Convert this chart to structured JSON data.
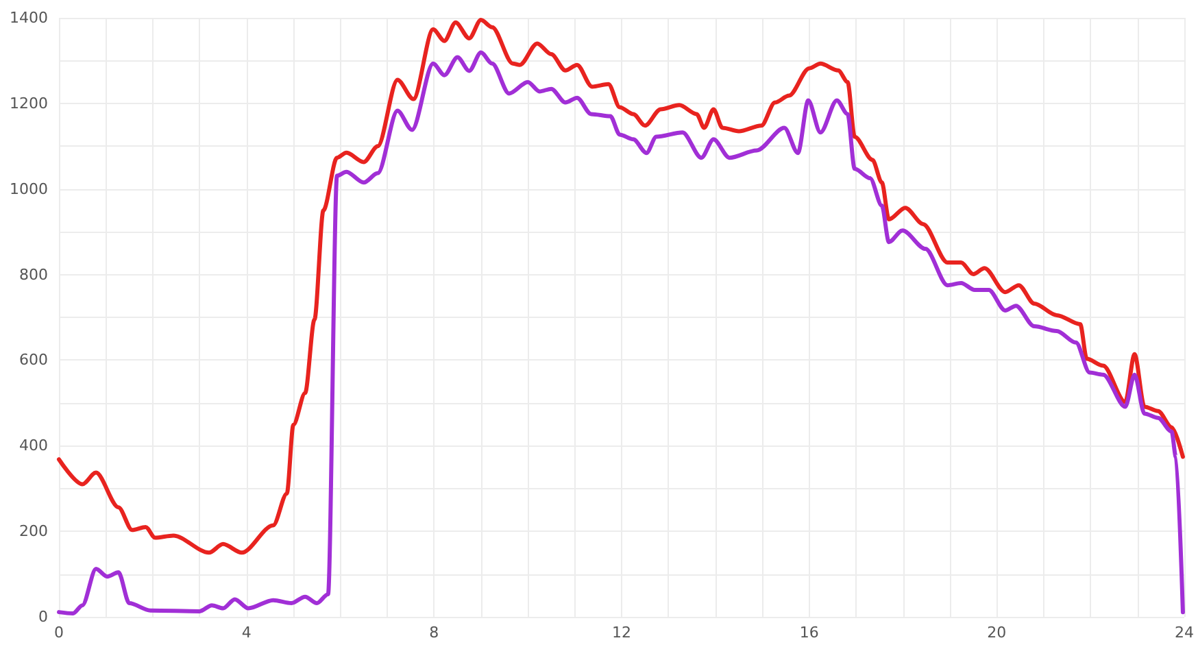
{
  "chart_data": {
    "type": "line",
    "xlim": [
      0,
      24
    ],
    "ylim": [
      0,
      1400
    ],
    "xticks": [
      0,
      {
        "value": 1,
        "label": null
      },
      {
        "value": 2,
        "label": null
      },
      {
        "value": 3,
        "label": null
      },
      4,
      {
        "value": 5,
        "label": null
      },
      {
        "value": 6,
        "label": null
      },
      {
        "value": 7,
        "label": null
      },
      8,
      {
        "value": 9,
        "label": null
      },
      {
        "value": 10,
        "label": null
      },
      {
        "value": 11,
        "label": null
      },
      12,
      {
        "value": 13,
        "label": null
      },
      {
        "value": 14,
        "label": null
      },
      {
        "value": 15,
        "label": null
      },
      16,
      {
        "value": 17,
        "label": null
      },
      {
        "value": 18,
        "label": null
      },
      {
        "value": 19,
        "label": null
      },
      20,
      {
        "value": 21,
        "label": null
      },
      {
        "value": 22,
        "label": null
      },
      {
        "value": 23,
        "label": null
      },
      24
    ],
    "yticks": [
      0,
      {
        "value": 100,
        "label": null
      },
      200,
      {
        "value": 300,
        "label": null
      },
      400,
      {
        "value": 500,
        "label": null
      },
      600,
      {
        "value": 700,
        "label": null
      },
      800,
      {
        "value": 900,
        "label": null
      },
      1000,
      {
        "value": 1100,
        "label": null
      },
      1200,
      {
        "value": 1300,
        "label": null
      },
      1400
    ],
    "grid": true,
    "marker": "none",
    "line_style": "solid",
    "series": [
      {
        "color": "#e8231f",
        "x": [
          0,
          0.5,
          0.79,
          1.27,
          1.56,
          1.85,
          2.05,
          2.44,
          3.2,
          3.5,
          3.9,
          4.57,
          4.86,
          5.0,
          5.25,
          5.45,
          5.64,
          5.93,
          6.13,
          6.5,
          6.8,
          7.22,
          7.56,
          7.98,
          8.22,
          8.46,
          8.75,
          9.0,
          9.24,
          9.68,
          9.83,
          10.2,
          10.5,
          10.8,
          11.05,
          11.37,
          11.72,
          11.96,
          12.25,
          12.5,
          12.83,
          13.23,
          13.6,
          13.76,
          13.96,
          14.15,
          14.5,
          14.98,
          15.27,
          15.57,
          16.0,
          16.24,
          16.62,
          16.82,
          16.97,
          17.35,
          17.55,
          17.7,
          18.05,
          18.43,
          18.95,
          19.24,
          19.5,
          19.74,
          20.18,
          20.47,
          20.8,
          21.28,
          21.78,
          21.92,
          22.27,
          22.74,
          22.94,
          23.15,
          23.44,
          23.73,
          23.97
        ],
        "values": [
          368,
          310,
          337,
          256,
          203,
          210,
          185,
          190,
          150,
          170,
          150,
          214,
          288,
          449,
          523,
          695,
          950,
          1073,
          1085,
          1063,
          1100,
          1255,
          1210,
          1373,
          1346,
          1389,
          1352,
          1395,
          1378,
          1293,
          1290,
          1340,
          1315,
          1277,
          1290,
          1239,
          1245,
          1191,
          1175,
          1148,
          1186,
          1196,
          1175,
          1143,
          1186,
          1143,
          1135,
          1148,
          1202,
          1218,
          1282,
          1293,
          1277,
          1250,
          1122,
          1068,
          1015,
          929,
          956,
          918,
          828,
          828,
          801,
          815,
          759,
          775,
          732,
          705,
          684,
          603,
          587,
          502,
          614,
          491,
          481,
          443,
          374
        ]
      },
      {
        "color": "#a12fd6",
        "x": [
          0,
          0.3,
          0.5,
          0.79,
          1.03,
          1.27,
          1.5,
          1.95,
          3.0,
          3.26,
          3.5,
          3.75,
          4.04,
          4.57,
          4.96,
          5.25,
          5.5,
          5.74,
          5.93,
          6.13,
          6.5,
          6.8,
          7.22,
          7.53,
          7.98,
          8.22,
          8.5,
          8.75,
          9.0,
          9.24,
          9.6,
          10.0,
          10.25,
          10.5,
          10.8,
          11.05,
          11.35,
          11.76,
          11.96,
          12.25,
          12.53,
          12.74,
          13.3,
          13.7,
          13.96,
          14.3,
          14.88,
          15.47,
          15.76,
          15.98,
          16.24,
          16.59,
          16.82,
          16.97,
          17.3,
          17.55,
          17.7,
          17.99,
          18.48,
          18.95,
          19.24,
          19.53,
          19.83,
          20.18,
          20.41,
          20.8,
          21.28,
          21.69,
          21.98,
          22.27,
          22.74,
          22.94,
          23.15,
          23.44,
          23.73,
          23.82,
          23.97
        ],
        "values": [
          11,
          8,
          27,
          112,
          94,
          104,
          32,
          15,
          13,
          27,
          20,
          41,
          20,
          39,
          32,
          47,
          32,
          53,
          1031,
          1040,
          1015,
          1037,
          1183,
          1138,
          1293,
          1266,
          1308,
          1276,
          1319,
          1293,
          1223,
          1250,
          1228,
          1234,
          1202,
          1213,
          1175,
          1170,
          1127,
          1116,
          1084,
          1122,
          1132,
          1073,
          1116,
          1073,
          1090,
          1143,
          1084,
          1207,
          1132,
          1207,
          1175,
          1047,
          1025,
          961,
          876,
          903,
          860,
          775,
          780,
          764,
          764,
          716,
          727,
          679,
          668,
          641,
          571,
          566,
          491,
          566,
          475,
          465,
          433,
          374,
          11
        ]
      }
    ]
  }
}
